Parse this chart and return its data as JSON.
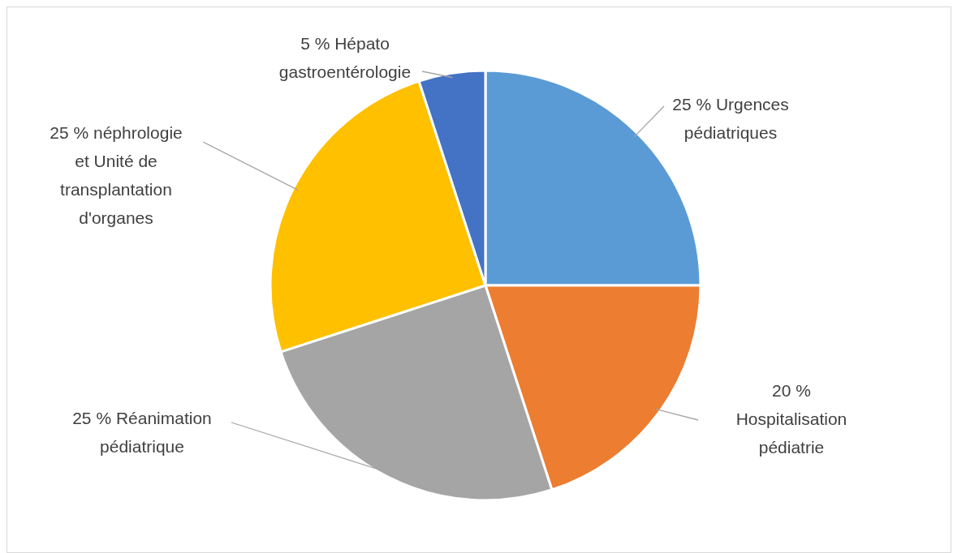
{
  "chart_data": {
    "type": "pie",
    "categories": [
      "Urgences pédiatriques",
      "Hospitalisation pédiatrie",
      "Réanimation pédiatrique",
      "néphrologie et Unité de transplantation d'organes",
      "Hépato gastroentérologie"
    ],
    "values": [
      25,
      20,
      25,
      25,
      5
    ],
    "value_labels": [
      "25 %",
      "20 %",
      "25 %",
      "25 %",
      "5 %"
    ],
    "colors": [
      "#5b9bd5",
      "#ed7d31",
      "#a5a5a5",
      "#ffc000",
      "#4472c4"
    ],
    "legend": false
  }
}
